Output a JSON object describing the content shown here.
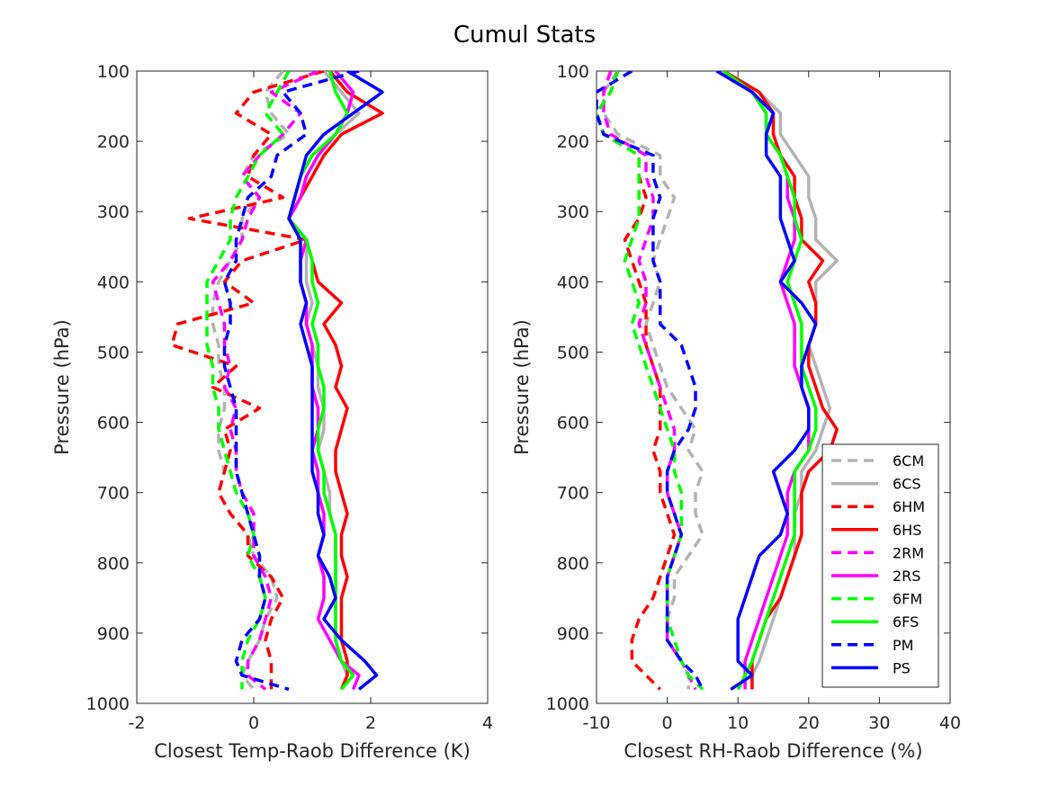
{
  "chart_data": {
    "title": "Cumul Stats",
    "type": "line",
    "styles": {
      "6CM": {
        "color": "#b3b3b3",
        "dash": true
      },
      "6CS": {
        "color": "#b3b3b3",
        "dash": false
      },
      "6HM": {
        "color": "#ff0000",
        "dash": true
      },
      "6HS": {
        "color": "#ff0000",
        "dash": false
      },
      "2RM": {
        "color": "#ff00ff",
        "dash": true
      },
      "2RS": {
        "color": "#ff00ff",
        "dash": false
      },
      "6FM": {
        "color": "#00ff00",
        "dash": true
      },
      "6FS": {
        "color": "#00ff00",
        "dash": false
      },
      "PM": {
        "color": "#0000ff",
        "dash": true
      },
      "PS": {
        "color": "#0000ff",
        "dash": false
      }
    },
    "legend": {
      "position": "bottom-right",
      "entries": [
        "6CM",
        "6CS",
        "6HM",
        "6HS",
        "2RM",
        "2RS",
        "6FM",
        "6FS",
        "PM",
        "PS"
      ]
    },
    "panels": [
      {
        "xlabel": "Closest Temp-Raob Difference (K)",
        "ylabel": "Pressure (hPa)",
        "xlim": [
          -2,
          4
        ],
        "ylim": [
          100,
          1000
        ],
        "y_reversed": true,
        "xticks": [
          "-2",
          "0",
          "2",
          "4"
        ],
        "xtick_values": [
          -2,
          0,
          2,
          4
        ],
        "yticks": [
          "100",
          "200",
          "300",
          "400",
          "500",
          "600",
          "700",
          "800",
          "900",
          "1000"
        ],
        "ytick_values": [
          100,
          200,
          300,
          400,
          500,
          600,
          700,
          800,
          900,
          1000
        ],
        "pressure": [
          100,
          130,
          160,
          190,
          220,
          250,
          280,
          310,
          340,
          370,
          400,
          430,
          460,
          490,
          520,
          550,
          580,
          610,
          640,
          670,
          700,
          730,
          760,
          790,
          820,
          850,
          880,
          910,
          940,
          960,
          980
        ],
        "series": [
          {
            "name": "6CM",
            "values": [
              0.5,
              0.2,
              0.3,
              0.6,
              0.0,
              -0.2,
              0.1,
              -0.2,
              -0.2,
              -0.4,
              -0.6,
              -0.7,
              -0.7,
              -0.6,
              -0.6,
              -0.5,
              -0.5,
              -0.6,
              -0.6,
              -0.5,
              -0.6,
              -0.4,
              -0.1,
              0.0,
              0.3,
              0.4,
              0.2,
              0.1,
              -0.1,
              -0.2,
              0.0
            ]
          },
          {
            "name": "6CS",
            "values": [
              1.2,
              1.5,
              1.8,
              1.4,
              1.1,
              0.9,
              0.8,
              0.6,
              0.9,
              0.9,
              0.9,
              1.0,
              0.9,
              1.0,
              1.1,
              1.1,
              1.2,
              1.2,
              1.1,
              1.2,
              1.3,
              1.3,
              1.4,
              1.4,
              1.4,
              1.4,
              1.4,
              1.4,
              1.5,
              1.6,
              1.5
            ]
          },
          {
            "name": "6HM",
            "values": [
              1.2,
              0.0,
              -0.3,
              0.3,
              0.0,
              -0.1,
              0.5,
              -1.1,
              0.9,
              -0.2,
              -0.5,
              0.0,
              -1.3,
              -1.4,
              -0.3,
              -0.7,
              0.1,
              -0.5,
              -0.4,
              -0.5,
              -0.6,
              -0.4,
              -0.1,
              -0.1,
              0.3,
              0.5,
              0.3,
              0.2,
              0.3,
              0.3,
              0.3
            ]
          },
          {
            "name": "6HS",
            "values": [
              1.3,
              1.6,
              2.2,
              1.5,
              1.2,
              1.0,
              0.8,
              0.6,
              0.9,
              1.0,
              1.1,
              1.5,
              1.2,
              1.4,
              1.5,
              1.4,
              1.6,
              1.5,
              1.4,
              1.4,
              1.5,
              1.6,
              1.5,
              1.5,
              1.6,
              1.5,
              1.5,
              1.5,
              1.6,
              1.6,
              1.5
            ]
          },
          {
            "name": "2RM",
            "values": [
              1.1,
              0.3,
              0.8,
              0.5,
              0.1,
              -0.2,
              0.1,
              -0.1,
              -0.2,
              -0.4,
              -0.7,
              -0.6,
              -0.5,
              -0.5,
              -0.4,
              -0.5,
              -0.3,
              -0.4,
              -0.3,
              -0.3,
              -0.2,
              0.0,
              0.0,
              0.0,
              0.2,
              0.3,
              0.2,
              0.1,
              -0.1,
              -0.1,
              0.2
            ]
          },
          {
            "name": "2RS",
            "values": [
              1.4,
              1.7,
              1.6,
              1.4,
              1.1,
              0.9,
              0.8,
              0.6,
              0.9,
              0.8,
              0.8,
              0.9,
              0.9,
              1.0,
              1.0,
              1.0,
              1.1,
              1.1,
              1.0,
              1.1,
              1.1,
              1.2,
              1.2,
              1.1,
              1.2,
              1.2,
              1.1,
              1.3,
              1.5,
              1.8,
              1.7
            ]
          },
          {
            "name": "6FM",
            "values": [
              0.6,
              0.4,
              0.2,
              0.5,
              0.1,
              -0.1,
              -0.3,
              -0.4,
              -0.4,
              -0.6,
              -0.8,
              -0.8,
              -0.8,
              -0.8,
              -0.7,
              -0.7,
              -0.6,
              -0.6,
              -0.5,
              -0.4,
              -0.3,
              -0.1,
              0.0,
              -0.1,
              0.1,
              0.2,
              0.1,
              -0.1,
              -0.2,
              -0.2,
              -0.2
            ]
          },
          {
            "name": "6FS",
            "values": [
              1.3,
              1.4,
              1.6,
              1.4,
              1.0,
              0.8,
              0.7,
              0.6,
              0.9,
              1.0,
              1.0,
              1.1,
              1.0,
              1.1,
              1.1,
              1.2,
              1.2,
              1.1,
              1.1,
              1.2,
              1.2,
              1.3,
              1.4,
              1.4,
              1.4,
              1.4,
              1.4,
              1.4,
              1.5,
              1.7,
              1.5
            ]
          },
          {
            "name": "PM",
            "values": [
              1.8,
              0.5,
              0.8,
              0.9,
              0.4,
              0.3,
              -0.1,
              -0.2,
              -0.3,
              -0.3,
              -0.5,
              -0.4,
              -0.4,
              -0.5,
              -0.5,
              -0.4,
              -0.3,
              -0.3,
              -0.3,
              -0.3,
              -0.2,
              -0.1,
              0.0,
              0.1,
              0.1,
              0.2,
              0.1,
              -0.2,
              -0.3,
              -0.2,
              0.6
            ]
          },
          {
            "name": "PS",
            "values": [
              1.6,
              2.2,
              1.7,
              1.2,
              0.9,
              0.8,
              0.7,
              0.6,
              0.8,
              0.8,
              0.8,
              0.9,
              0.8,
              0.9,
              1.0,
              1.0,
              1.0,
              1.0,
              1.0,
              1.0,
              1.1,
              1.1,
              1.2,
              1.1,
              1.3,
              1.4,
              1.2,
              1.5,
              1.9,
              2.1,
              1.8
            ]
          }
        ]
      },
      {
        "xlabel": "Closest RH-Raob Difference (%)",
        "ylabel": "Pressure (hPa)",
        "xlim": [
          -10,
          40
        ],
        "ylim": [
          100,
          1000
        ],
        "y_reversed": true,
        "xticks": [
          "-10",
          "0",
          "10",
          "20",
          "30",
          "40"
        ],
        "xtick_values": [
          -10,
          0,
          10,
          20,
          30,
          40
        ],
        "yticks": [
          "100",
          "200",
          "300",
          "400",
          "500",
          "600",
          "700",
          "800",
          "900",
          "1000"
        ],
        "ytick_values": [
          100,
          200,
          300,
          400,
          500,
          600,
          700,
          800,
          900,
          1000
        ],
        "pressure": [
          100,
          130,
          160,
          190,
          220,
          250,
          280,
          310,
          340,
          370,
          400,
          430,
          460,
          490,
          520,
          550,
          580,
          610,
          640,
          670,
          700,
          730,
          760,
          790,
          820,
          850,
          880,
          910,
          940,
          960,
          980
        ],
        "series": [
          {
            "name": "6CM",
            "values": [
              -7,
              -9,
              -9,
              -7,
              -1,
              -1,
              1,
              0,
              -1,
              -2,
              -1,
              -2,
              -3,
              -2,
              -1,
              0,
              2,
              4,
              3,
              5,
              4,
              4,
              5,
              3,
              1,
              1,
              0,
              0,
              2,
              3,
              3
            ]
          },
          {
            "name": "6CS",
            "values": [
              8,
              13,
              16,
              16,
              18,
              20,
              20,
              21,
              21,
              24,
              21,
              21,
              21,
              20,
              21,
              22,
              23,
              22,
              21,
              19,
              19,
              18,
              18,
              18,
              17,
              16,
              15,
              14,
              13,
              12,
              12
            ]
          },
          {
            "name": "6HM",
            "values": [
              -7,
              -8,
              -10,
              -9,
              -4,
              -4,
              -3,
              -4,
              -6,
              -5,
              -4,
              -3,
              -3,
              -3,
              -2,
              -1,
              -1,
              -1,
              -2,
              -1,
              -1,
              0,
              1,
              0,
              -1,
              -2,
              -4,
              -5,
              -5,
              -3,
              -1
            ]
          },
          {
            "name": "6HS",
            "values": [
              8,
              13,
              15,
              15,
              16,
              18,
              18,
              19,
              19,
              22,
              20,
              21,
              21,
              20,
              20,
              21,
              22,
              24,
              23,
              20,
              19,
              19,
              19,
              18,
              17,
              16,
              14,
              13,
              12,
              12,
              12
            ]
          },
          {
            "name": "2RM",
            "values": [
              -8,
              -9,
              -9,
              -8,
              -3,
              -3,
              -2,
              -2,
              -3,
              -4,
              -3,
              -3,
              -4,
              -3,
              -2,
              -1,
              0,
              1,
              1,
              0,
              0,
              1,
              2,
              1,
              0,
              0,
              0,
              0,
              2,
              3,
              4
            ]
          },
          {
            "name": "2RS",
            "values": [
              7,
              12,
              14,
              14,
              16,
              17,
              17,
              18,
              18,
              17,
              16,
              17,
              18,
              18,
              18,
              19,
              20,
              20,
              20,
              18,
              17,
              17,
              17,
              16,
              15,
              14,
              13,
              12,
              11,
              11,
              11
            ]
          },
          {
            "name": "6FM",
            "values": [
              -7,
              -8,
              -10,
              -9,
              -4,
              -4,
              -4,
              -4,
              -5,
              -6,
              -5,
              -4,
              -5,
              -4,
              -3,
              -2,
              -1,
              0,
              1,
              1,
              2,
              2,
              2,
              1,
              0,
              0,
              0,
              1,
              2,
              3,
              5
            ]
          },
          {
            "name": "6FS",
            "values": [
              8,
              12,
              14,
              14,
              16,
              17,
              18,
              18,
              19,
              18,
              17,
              18,
              19,
              19,
              19,
              20,
              21,
              21,
              20,
              18,
              18,
              18,
              18,
              17,
              16,
              15,
              14,
              13,
              12,
              11,
              10
            ]
          },
          {
            "name": "PM",
            "values": [
              -5,
              -10,
              -10,
              -9,
              -2,
              -2,
              -1,
              -2,
              -2,
              -2,
              -1,
              -1,
              -1,
              2,
              3,
              4,
              4,
              3,
              1,
              0,
              0,
              1,
              2,
              1,
              0,
              0,
              0,
              0,
              2,
              4,
              5
            ]
          },
          {
            "name": "PS",
            "values": [
              7,
              12,
              15,
              14,
              14,
              16,
              16,
              16,
              17,
              18,
              16,
              19,
              21,
              20,
              19,
              19,
              20,
              20,
              18,
              15,
              16,
              17,
              16,
              13,
              12,
              11,
              10,
              10,
              10,
              12,
              9
            ]
          }
        ]
      }
    ]
  }
}
